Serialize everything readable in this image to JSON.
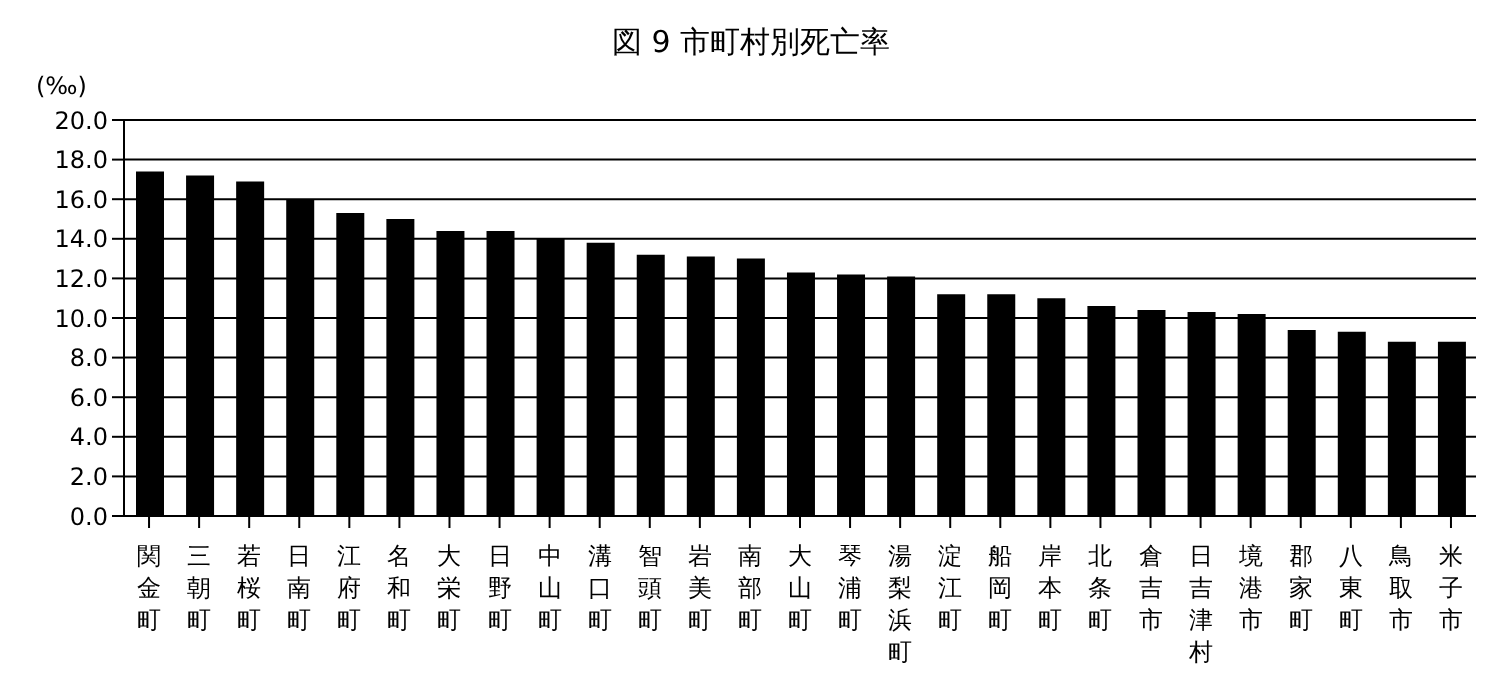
{
  "chart_data": {
    "type": "bar",
    "title": "図 9  市町村別死亡率",
    "ylabel": "(‰)",
    "categories": [
      "関金町",
      "三朝町",
      "若桜町",
      "日南町",
      "江府町",
      "名和町",
      "大栄町",
      "日野町",
      "中山町",
      "溝口町",
      "智頭町",
      "岩美町",
      "南部町",
      "大山町",
      "琴浦町",
      "湯梨浜町",
      "淀江町",
      "船岡町",
      "岸本町",
      "北条町",
      "倉吉市",
      "日吉津村",
      "境港市",
      "郡家町",
      "八東町",
      "鳥取市",
      "米子市"
    ],
    "values": [
      17.4,
      17.2,
      16.9,
      16.0,
      15.3,
      15.0,
      14.4,
      14.4,
      14.0,
      13.8,
      13.2,
      13.1,
      13.0,
      12.3,
      12.2,
      12.1,
      11.2,
      11.2,
      11.0,
      10.6,
      10.4,
      10.3,
      10.2,
      9.4,
      9.3,
      8.8,
      8.8
    ],
    "color": "#000000",
    "ylim": [
      0,
      20
    ],
    "yticks": [
      {
        "value": 0,
        "label": "0.0"
      },
      {
        "value": 2,
        "label": "2.0"
      },
      {
        "value": 4,
        "label": "4.0"
      },
      {
        "value": 6,
        "label": "6.0"
      },
      {
        "value": 8,
        "label": "8.0"
      },
      {
        "value": 10,
        "label": "10.0"
      },
      {
        "value": 12,
        "label": "12.0"
      },
      {
        "value": 14,
        "label": "14.0"
      },
      {
        "value": 16,
        "label": "16.0"
      },
      {
        "value": 18,
        "label": "18.0"
      },
      {
        "value": 20,
        "label": "20.0"
      }
    ],
    "grid": "y"
  }
}
